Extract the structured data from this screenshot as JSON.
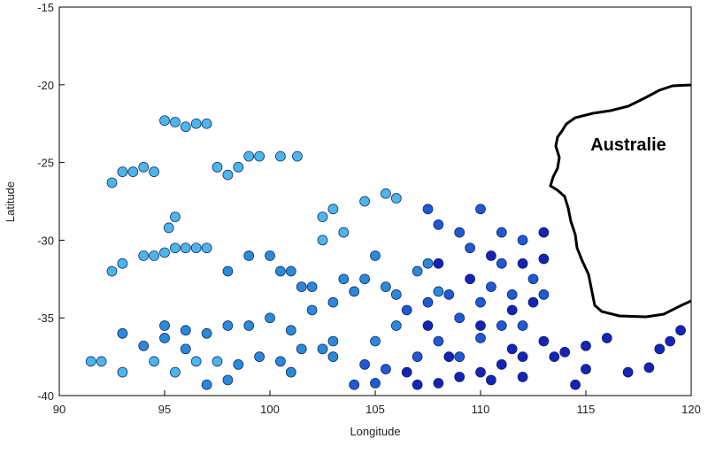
{
  "chart_data": {
    "type": "scatter",
    "xlabel": "Longitude",
    "ylabel": "Latitude",
    "annotation": "Australie",
    "xlim": [
      90,
      120
    ],
    "xticks": [
      90,
      95,
      100,
      105,
      110,
      115,
      120
    ],
    "ylim": [
      -40,
      -15
    ],
    "yticks": [
      -40,
      -35,
      -30,
      -25,
      -20,
      -15
    ],
    "series": [
      {
        "color": "#4cb6ea",
        "x": [
          92.5,
          93,
          93.5,
          94,
          94.5,
          95,
          95.5,
          96,
          96.5,
          97,
          97.5,
          98,
          98.5,
          99,
          99.5,
          100.5,
          101.3,
          95.5,
          95.2,
          92.5,
          93,
          94,
          94.5,
          95,
          95.5,
          96,
          96.5,
          97,
          91.5,
          92,
          93,
          94.5,
          95.5,
          96.5,
          97.5,
          102.5,
          103,
          104.5,
          105.5,
          106,
          102.5,
          103.5
        ],
        "values": [
          -26.3,
          -25.6,
          -25.6,
          -25.3,
          -25.6,
          -22.3,
          -22.4,
          -22.7,
          -22.5,
          -22.5,
          -25.3,
          -25.8,
          -25.3,
          -24.6,
          -24.6,
          -24.6,
          -24.6,
          -28.5,
          -29.2,
          -32,
          -31.5,
          -31,
          -31,
          -30.8,
          -30.5,
          -30.5,
          -30.5,
          -30.5,
          -37.8,
          -37.8,
          -38.5,
          -37.8,
          -38.5,
          -37.8,
          -37.8,
          -28.5,
          -28,
          -27.5,
          -27,
          -27.3,
          -30,
          -29.5
        ]
      },
      {
        "color": "#2a8ad8",
        "x": [
          98,
          99,
          100,
          100.5,
          101,
          101.5,
          102,
          95,
          96,
          97,
          98,
          99,
          100,
          101,
          102,
          103,
          94,
          95,
          93,
          96,
          98.5,
          99.5,
          100.5,
          101.5,
          102.5,
          103,
          104,
          104.5,
          105,
          103.5,
          105.5,
          106,
          107,
          107.5,
          108,
          105,
          106,
          97,
          98,
          101,
          103
        ],
        "values": [
          -32,
          -31,
          -31,
          -32,
          -32,
          -33,
          -33,
          -35.5,
          -35.8,
          -36,
          -35.5,
          -35.5,
          -35,
          -35.8,
          -34.5,
          -34,
          -36.8,
          -36.3,
          -36,
          -37,
          -38,
          -37.5,
          -37.8,
          -37,
          -37,
          -36.5,
          -33.3,
          -32.5,
          -31,
          -32.5,
          -33,
          -33.5,
          -32,
          -31.5,
          -33.3,
          -36.5,
          -35.5,
          -39.3,
          -39,
          -38.5,
          -37.5
        ]
      },
      {
        "color": "#1f5ad0",
        "x": [
          106.5,
          107.5,
          108.5,
          109,
          110,
          110.5,
          111,
          109,
          109.5,
          108,
          107.5,
          110,
          111,
          112,
          104.5,
          105.5,
          107,
          108,
          109,
          110,
          111,
          112,
          113,
          112.5,
          111.5,
          104,
          105
        ],
        "values": [
          -34.5,
          -34,
          -33.5,
          -35,
          -34,
          -33,
          -31.5,
          -29.5,
          -30.5,
          -29,
          -28,
          -28,
          -29.5,
          -30,
          -38,
          -38.3,
          -37.5,
          -36.5,
          -37.5,
          -36.3,
          -35.5,
          -35.5,
          -33.5,
          -32.5,
          -33.5,
          -39.3,
          -39.2
        ]
      },
      {
        "color": "#1424b4",
        "x": [
          107,
          108,
          109,
          110,
          111,
          112,
          113,
          114,
          115,
          116,
          115,
          114.5,
          117,
          118,
          118.5,
          119,
          119.5,
          113,
          113,
          112,
          110.5,
          109.5,
          111.5,
          112.5,
          108,
          113.5,
          112,
          110.5,
          106.5,
          108.5,
          110,
          111.5,
          107.5
        ],
        "values": [
          -39.3,
          -39.2,
          -38.8,
          -38.5,
          -38,
          -37.5,
          -36.5,
          -37.2,
          -36.8,
          -36.3,
          -38.3,
          -39.3,
          -38.5,
          -38.2,
          -37,
          -36.5,
          -35.8,
          -29.5,
          -31.2,
          -31.5,
          -31,
          -32.5,
          -34.5,
          -34,
          -31.5,
          -37.5,
          -38.8,
          -39,
          -38.5,
          -37.5,
          -35.5,
          -37,
          -35.5
        ]
      }
    ]
  }
}
